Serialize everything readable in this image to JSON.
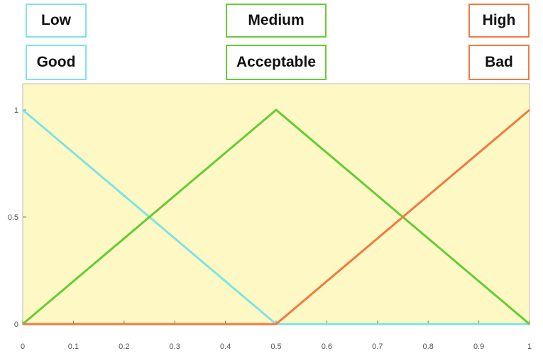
{
  "labels": {
    "left": {
      "top": "Low",
      "bottom": "Good",
      "color": "#7fe3e3"
    },
    "middle": {
      "top": "Medium",
      "bottom": "Acceptable",
      "color": "#66cc33"
    },
    "right": {
      "top": "High",
      "bottom": "Bad",
      "color": "#f07b3f"
    }
  },
  "chart_data": {
    "type": "line",
    "xlim": [
      0,
      1
    ],
    "ylim": [
      0,
      1
    ],
    "x_ticks": [
      "0",
      "0.1",
      "0.2",
      "0.3",
      "0.4",
      "0.5",
      "0.6",
      "0.7",
      "0.8",
      "0.9",
      "1"
    ],
    "y_ticks": [
      "0",
      "0.5",
      "1"
    ],
    "background_color": "#fdf8c4",
    "grid": false,
    "series": [
      {
        "color": "#7fe3e3",
        "x": [
          0,
          0.5,
          1
        ],
        "y": [
          1,
          0,
          0
        ]
      },
      {
        "color": "#66cc33",
        "x": [
          0,
          0.5,
          1
        ],
        "y": [
          0,
          1,
          0
        ]
      },
      {
        "color": "#f07b3f",
        "x": [
          0,
          0.5,
          1
        ],
        "y": [
          0,
          0,
          1
        ]
      }
    ]
  }
}
